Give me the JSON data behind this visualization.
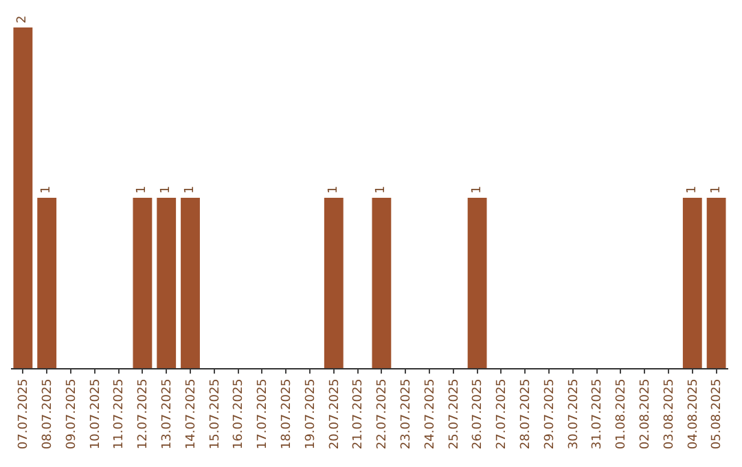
{
  "chart_data": {
    "type": "bar",
    "categories": [
      "07.07.2025",
      "08.07.2025",
      "09.07.2025",
      "10.07.2025",
      "11.07.2025",
      "12.07.2025",
      "13.07.2025",
      "14.07.2025",
      "15.07.2025",
      "16.07.2025",
      "17.07.2025",
      "18.07.2025",
      "19.07.2025",
      "20.07.2025",
      "21.07.2025",
      "22.07.2025",
      "23.07.2025",
      "24.07.2025",
      "25.07.2025",
      "26.07.2025",
      "27.07.2025",
      "28.07.2025",
      "29.07.2025",
      "30.07.2025",
      "31.07.2025",
      "01.08.2025",
      "02.08.2025",
      "03.08.2025",
      "04.08.2025",
      "05.08.2025"
    ],
    "values": [
      2,
      1,
      0,
      0,
      0,
      1,
      1,
      1,
      0,
      0,
      0,
      0,
      0,
      1,
      0,
      1,
      0,
      0,
      0,
      1,
      0,
      0,
      0,
      0,
      0,
      0,
      0,
      0,
      1,
      1
    ],
    "value_labels": [
      "2",
      "1",
      null,
      null,
      null,
      "1",
      "1",
      "1",
      null,
      null,
      null,
      null,
      null,
      "1",
      null,
      "1",
      null,
      null,
      null,
      "1",
      null,
      null,
      null,
      null,
      null,
      null,
      null,
      null,
      "1",
      "1"
    ],
    "color": "#a0522d"
  }
}
